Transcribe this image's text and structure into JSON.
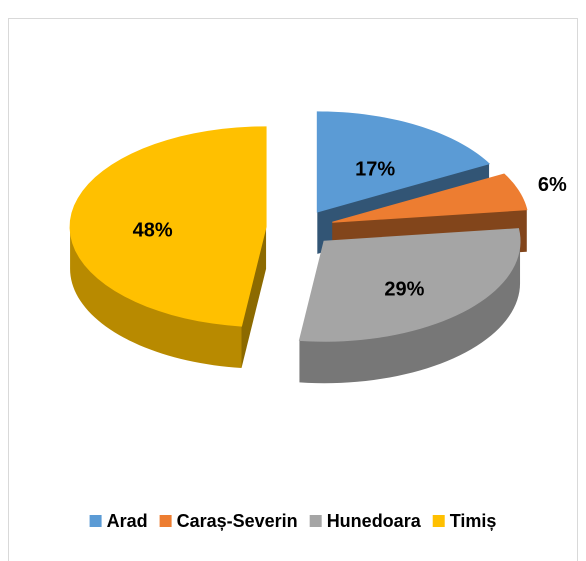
{
  "chart_data": {
    "type": "pie3d",
    "categories": [
      "Arad",
      "Caraș-Severin",
      "Hunedoara",
      "Timiș"
    ],
    "values": [
      17,
      6,
      29,
      48
    ],
    "value_labels": [
      "17%",
      "6%",
      "29%",
      "48%"
    ],
    "colors": [
      "#5b9bd5",
      "#ed7d31",
      "#a5a5a5",
      "#ffc000"
    ],
    "legend": "bottom"
  }
}
